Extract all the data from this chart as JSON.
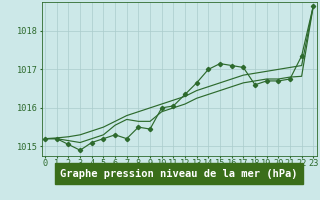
{
  "title": "Graphe pression niveau de la mer (hPa)",
  "x_labels": [
    "0",
    "1",
    "2",
    "3",
    "4",
    "5",
    "6",
    "7",
    "8",
    "9",
    "10",
    "11",
    "12",
    "13",
    "14",
    "15",
    "16",
    "17",
    "18",
    "19",
    "20",
    "21",
    "22",
    "23"
  ],
  "x_values": [
    0,
    1,
    2,
    3,
    4,
    5,
    6,
    7,
    8,
    9,
    10,
    11,
    12,
    13,
    14,
    15,
    16,
    17,
    18,
    19,
    20,
    21,
    22,
    23
  ],
  "line_nomarker_y": [
    1015.2,
    1015.2,
    1015.15,
    1015.1,
    1015.2,
    1015.3,
    1015.55,
    1015.7,
    1015.65,
    1015.65,
    1015.9,
    1016.0,
    1016.1,
    1016.25,
    1016.35,
    1016.45,
    1016.55,
    1016.65,
    1016.7,
    1016.75,
    1016.75,
    1016.8,
    1016.82,
    1018.65
  ],
  "line_straight_y": [
    1015.2,
    1015.22,
    1015.25,
    1015.3,
    1015.4,
    1015.5,
    1015.65,
    1015.8,
    1015.9,
    1016.0,
    1016.1,
    1016.2,
    1016.3,
    1016.45,
    1016.55,
    1016.65,
    1016.75,
    1016.85,
    1016.9,
    1016.95,
    1017.0,
    1017.05,
    1017.1,
    1018.65
  ],
  "line_marker_y": [
    1015.2,
    1015.2,
    1015.05,
    1014.9,
    1015.1,
    1015.2,
    1015.3,
    1015.2,
    1015.5,
    1015.45,
    1016.0,
    1016.05,
    1016.35,
    1016.65,
    1017.0,
    1017.15,
    1017.1,
    1017.05,
    1016.6,
    1016.7,
    1016.7,
    1016.75,
    1017.35,
    1018.65
  ],
  "line_color": "#2d6a2d",
  "bg_color": "#cce8e8",
  "grid_color": "#aacccc",
  "ylim": [
    1014.75,
    1018.75
  ],
  "yticks": [
    1015,
    1016,
    1017,
    1018
  ],
  "title_fontsize": 7.5,
  "tick_fontsize": 6.2,
  "xlabel_bottom_color": "#2d5a1e",
  "xlabel_bg_color": "#3a7a2a"
}
